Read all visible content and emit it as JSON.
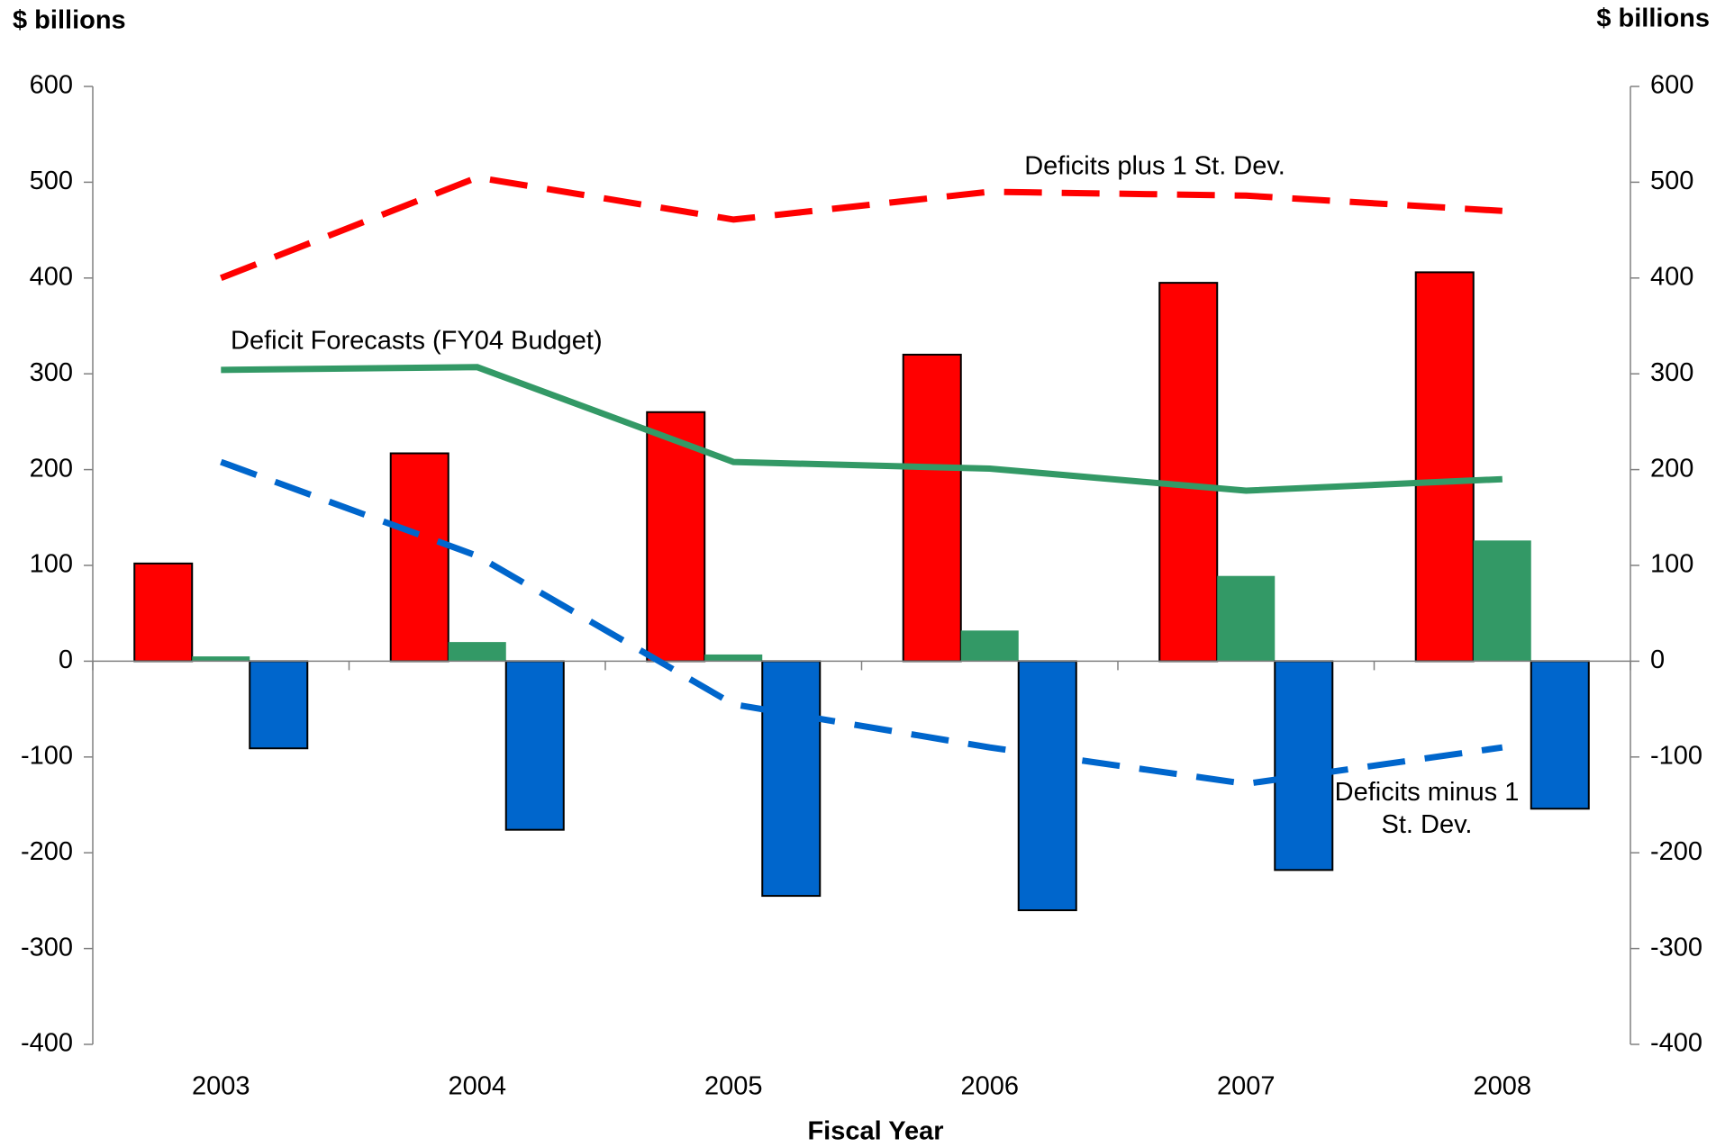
{
  "chart_data": {
    "type": "bar",
    "y_label": "$ billions",
    "y2_label": "$ billions",
    "x_label": "Fiscal Year",
    "categories": [
      "2003",
      "2004",
      "2005",
      "2006",
      "2007",
      "2008"
    ],
    "series": [
      {
        "type": "bar",
        "color": "#ff0000",
        "edgecolor": "#000000",
        "values": [
          102,
          217,
          260,
          320,
          395,
          406
        ]
      },
      {
        "type": "bar",
        "color": "#339966",
        "values": [
          5,
          20,
          7,
          32,
          89,
          126
        ]
      },
      {
        "type": "bar",
        "color": "#0066cc",
        "edgecolor": "#000000",
        "values": [
          -91,
          -176,
          -245,
          -260,
          -218,
          -154
        ]
      },
      {
        "type": "line",
        "name": "Deficits plus 1 St. Dev.",
        "color": "#ff0000",
        "dashed": true,
        "values": [
          400,
          505,
          461,
          490,
          486,
          470
        ]
      },
      {
        "type": "line",
        "name": "Deficit Forecasts (FY04 Budget)",
        "color": "#339966",
        "dashed": false,
        "values": [
          304,
          307,
          208,
          201,
          178,
          190
        ]
      },
      {
        "type": "line",
        "name": "Deficits minus 1 St. Dev.",
        "color": "#0066cc",
        "dashed": true,
        "values": [
          208,
          110,
          -45,
          -90,
          -128,
          -90
        ]
      }
    ],
    "ylim": [
      -400,
      600
    ],
    "yticks": [
      -400,
      -300,
      -200,
      -100,
      0,
      100,
      200,
      300,
      400,
      500,
      600
    ],
    "y2lim": [
      -400,
      600
    ],
    "y2ticks": [
      -400,
      -300,
      -200,
      -100,
      0,
      100,
      200,
      300,
      400,
      500,
      600
    ],
    "grid": false
  }
}
